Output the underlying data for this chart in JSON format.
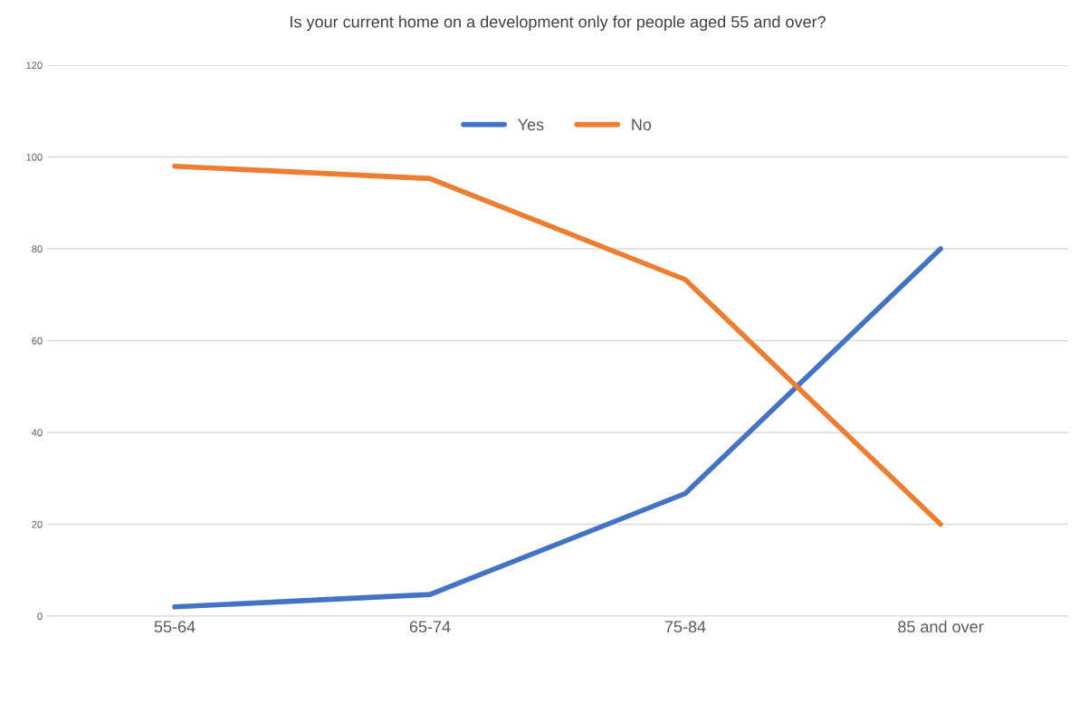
{
  "chart_data": {
    "type": "line",
    "title": "Is your current home on a development only for people aged 55 and over?",
    "categories": [
      "55-64",
      "65-74",
      "75-84",
      "85 and over"
    ],
    "series": [
      {
        "name": "Yes",
        "color": "#4472c4",
        "values": [
          2,
          4.7,
          26.7,
          80
        ]
      },
      {
        "name": "No",
        "color": "#ed7d31",
        "values": [
          98,
          95.3,
          73.3,
          20
        ]
      }
    ],
    "ylim": [
      0,
      120
    ],
    "yticks": [
      0,
      20,
      40,
      60,
      80,
      100,
      120
    ],
    "grid": "y",
    "legend": "top",
    "marker": "none",
    "line_style": "solid"
  }
}
